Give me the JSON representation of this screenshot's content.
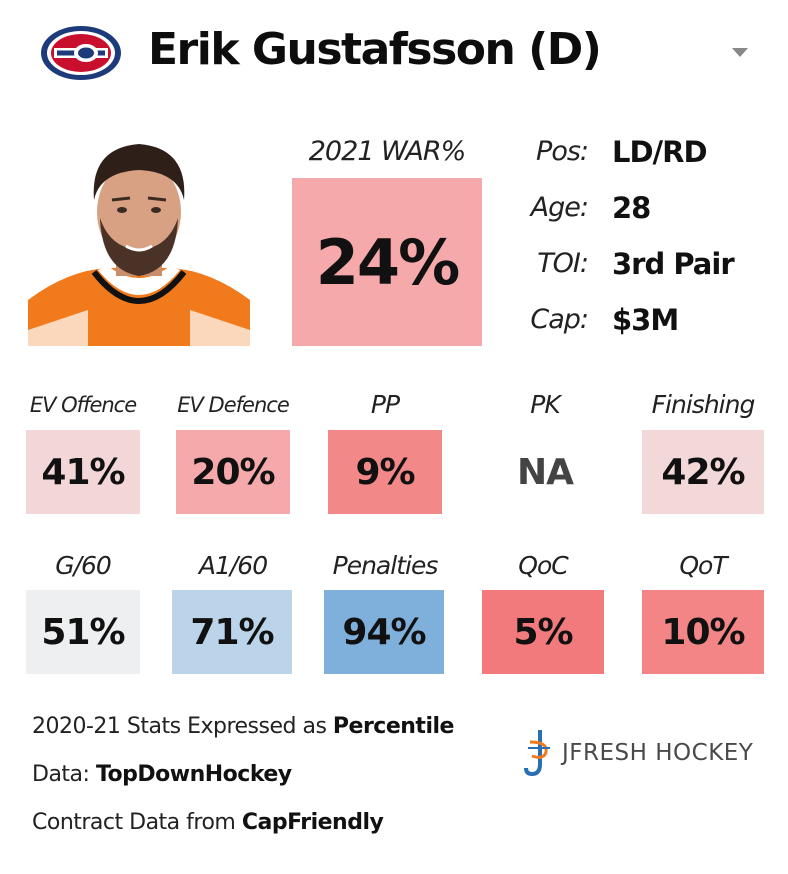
{
  "header": {
    "player_name": "Erik Gustafsson (D)",
    "team_logo_icon": "montreal-canadiens-logo",
    "dropdown_icon": "chevron-down-icon"
  },
  "war": {
    "label": "2021 WAR%",
    "value": "24%",
    "color": "#f5a9ab"
  },
  "info": [
    {
      "label": "Pos:",
      "value": "LD/RD"
    },
    {
      "label": "Age:",
      "value": "28"
    },
    {
      "label": "TOI:",
      "value": "3rd Pair"
    },
    {
      "label": "Cap:",
      "value": "$3M"
    }
  ],
  "stats_row1": [
    {
      "label": "EV Offence",
      "value": "41%",
      "color": "#f3d6d8"
    },
    {
      "label": "EV Defence",
      "value": "20%",
      "color": "#f5a9ab"
    },
    {
      "label": "PP",
      "value": "9%",
      "color": "#f38889"
    },
    {
      "label": "PK",
      "value": "NA",
      "color": "#ffffff"
    },
    {
      "label": "Finishing",
      "value": "42%",
      "color": "#f3d8da"
    }
  ],
  "stats_row2": [
    {
      "label": "G/60",
      "value": "51%",
      "color": "#eeeff1"
    },
    {
      "label": "A1/60",
      "value": "71%",
      "color": "#bcd4ea"
    },
    {
      "label": "Penalties",
      "value": "94%",
      "color": "#7fb0dc"
    },
    {
      "label": "QoC",
      "value": "5%",
      "color": "#f27a7c"
    },
    {
      "label": "QoT",
      "value": "10%",
      "color": "#f38587"
    }
  ],
  "footer": {
    "line1_prefix": "2020-21 Stats Expressed as ",
    "line1_bold": "Percentile",
    "line2_prefix": "Data: ",
    "line2_bold": "TopDownHockey",
    "line3_prefix": "Contract Data from ",
    "line3_bold": "CapFriendly",
    "brand": "JFRESH HOCKEY",
    "brand_icon": "jfresh-hockey-logo"
  }
}
